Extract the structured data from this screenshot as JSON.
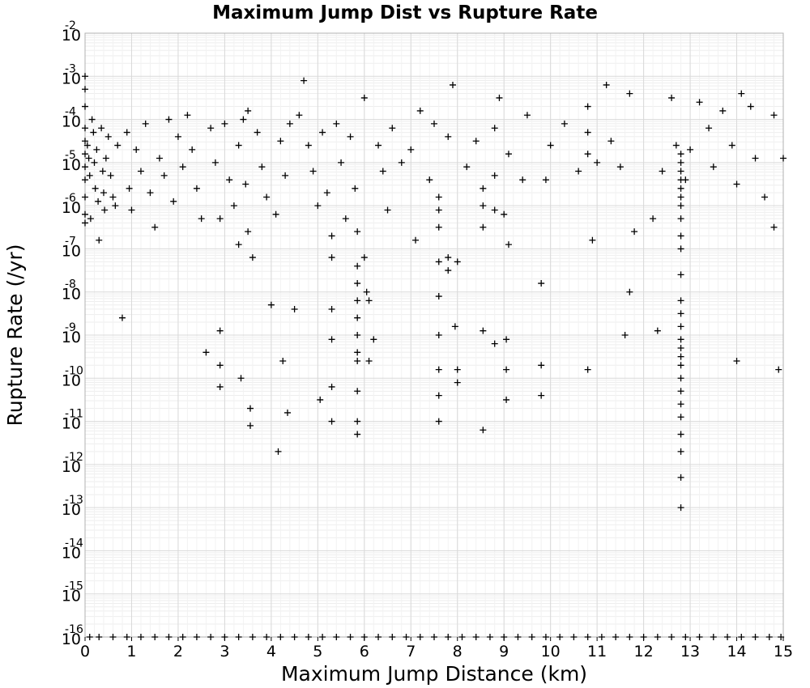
{
  "chart_data": {
    "type": "scatter",
    "title": "Maximum Jump Dist vs Rupture Rate",
    "xlabel": "Maximum Jump Distance (km)",
    "ylabel": "Rupture Rate (/yr)",
    "xlim": [
      0,
      15
    ],
    "ylim_exponent": [
      -16,
      -2
    ],
    "y_scale": "log",
    "x_ticks": [
      "0",
      "1",
      "2",
      "3",
      "4",
      "5",
      "6",
      "7",
      "8",
      "9",
      "10",
      "11",
      "12",
      "13",
      "14",
      "15"
    ],
    "y_ticks": [
      {
        "base": "10",
        "exp": "-2"
      },
      {
        "base": "10",
        "exp": "-3"
      },
      {
        "base": "10",
        "exp": "-4"
      },
      {
        "base": "10",
        "exp": "-5"
      },
      {
        "base": "10",
        "exp": "-6"
      },
      {
        "base": "10",
        "exp": "-7"
      },
      {
        "base": "10",
        "exp": "-8"
      },
      {
        "base": "10",
        "exp": "-9"
      },
      {
        "base": "10",
        "exp": "-10"
      },
      {
        "base": "10",
        "exp": "-11"
      },
      {
        "base": "10",
        "exp": "-12"
      },
      {
        "base": "10",
        "exp": "-13"
      },
      {
        "base": "10",
        "exp": "-14"
      },
      {
        "base": "10",
        "exp": "-15"
      },
      {
        "base": "10",
        "exp": "-16"
      }
    ],
    "grid": true,
    "marker": "+",
    "marker_color": "#000000",
    "points_log10": [
      [
        0.0,
        -3.0
      ],
      [
        0.0,
        -3.3
      ],
      [
        0.0,
        -3.7
      ],
      [
        0.0,
        -4.2
      ],
      [
        0.0,
        -4.5
      ],
      [
        0.0,
        -4.8
      ],
      [
        0.0,
        -5.1
      ],
      [
        0.0,
        -5.4
      ],
      [
        0.0,
        -5.8
      ],
      [
        0.0,
        -6.2
      ],
      [
        0.0,
        -6.4
      ],
      [
        0.05,
        -4.6
      ],
      [
        0.08,
        -4.9
      ],
      [
        0.1,
        -5.3
      ],
      [
        0.12,
        -6.3
      ],
      [
        0.15,
        -4.0
      ],
      [
        0.18,
        -4.3
      ],
      [
        0.2,
        -5.0
      ],
      [
        0.22,
        -5.6
      ],
      [
        0.25,
        -4.7
      ],
      [
        0.28,
        -5.9
      ],
      [
        0.3,
        -6.8
      ],
      [
        0.35,
        -4.2
      ],
      [
        0.38,
        -5.2
      ],
      [
        0.4,
        -5.7
      ],
      [
        0.42,
        -6.1
      ],
      [
        0.45,
        -4.9
      ],
      [
        0.5,
        -4.4
      ],
      [
        0.55,
        -5.3
      ],
      [
        0.6,
        -5.8
      ],
      [
        0.65,
        -6.0
      ],
      [
        0.7,
        -4.6
      ],
      [
        0.8,
        -8.6
      ],
      [
        0.9,
        -4.3
      ],
      [
        0.95,
        -5.6
      ],
      [
        1.0,
        -6.1
      ],
      [
        1.1,
        -4.7
      ],
      [
        1.2,
        -5.2
      ],
      [
        1.3,
        -4.1
      ],
      [
        1.4,
        -5.7
      ],
      [
        1.5,
        -6.5
      ],
      [
        1.6,
        -4.9
      ],
      [
        1.7,
        -5.3
      ],
      [
        1.8,
        -4.0
      ],
      [
        1.9,
        -5.9
      ],
      [
        2.0,
        -4.4
      ],
      [
        2.1,
        -5.1
      ],
      [
        2.2,
        -3.9
      ],
      [
        2.3,
        -4.7
      ],
      [
        2.4,
        -5.6
      ],
      [
        2.5,
        -6.3
      ],
      [
        2.6,
        -9.4
      ],
      [
        2.7,
        -4.2
      ],
      [
        2.8,
        -5.0
      ],
      [
        2.9,
        -6.3
      ],
      [
        2.9,
        -8.9
      ],
      [
        2.9,
        -9.7
      ],
      [
        2.9,
        -10.2
      ],
      [
        3.0,
        -4.1
      ],
      [
        3.1,
        -5.4
      ],
      [
        3.2,
        -6.0
      ],
      [
        3.3,
        -4.6
      ],
      [
        3.3,
        -6.9
      ],
      [
        3.35,
        -10.0
      ],
      [
        3.4,
        -4.0
      ],
      [
        3.45,
        -5.5
      ],
      [
        3.5,
        -3.8
      ],
      [
        3.5,
        -6.6
      ],
      [
        3.55,
        -10.7
      ],
      [
        3.55,
        -11.1
      ],
      [
        3.6,
        -7.2
      ],
      [
        3.7,
        -4.3
      ],
      [
        3.8,
        -5.1
      ],
      [
        3.9,
        -5.8
      ],
      [
        4.0,
        -8.3
      ],
      [
        4.1,
        -6.2
      ],
      [
        4.15,
        -11.7
      ],
      [
        4.2,
        -4.5
      ],
      [
        4.25,
        -9.6
      ],
      [
        4.3,
        -5.3
      ],
      [
        4.35,
        -10.8
      ],
      [
        4.4,
        -4.1
      ],
      [
        4.5,
        -8.4
      ],
      [
        4.6,
        -3.9
      ],
      [
        4.7,
        -3.1
      ],
      [
        4.8,
        -4.6
      ],
      [
        4.9,
        -5.2
      ],
      [
        5.0,
        -6.0
      ],
      [
        5.05,
        -10.5
      ],
      [
        5.1,
        -4.3
      ],
      [
        5.2,
        -5.7
      ],
      [
        5.3,
        -6.7
      ],
      [
        5.3,
        -7.2
      ],
      [
        5.3,
        -8.4
      ],
      [
        5.3,
        -9.1
      ],
      [
        5.3,
        -10.2
      ],
      [
        5.3,
        -11.0
      ],
      [
        5.4,
        -4.1
      ],
      [
        5.5,
        -5.0
      ],
      [
        5.6,
        -6.3
      ],
      [
        5.7,
        -4.4
      ],
      [
        5.8,
        -5.6
      ],
      [
        5.85,
        -6.6
      ],
      [
        5.85,
        -7.4
      ],
      [
        5.85,
        -7.8
      ],
      [
        5.85,
        -8.2
      ],
      [
        5.85,
        -8.6
      ],
      [
        5.85,
        -9.0
      ],
      [
        5.85,
        -9.4
      ],
      [
        5.85,
        -9.6
      ],
      [
        5.85,
        -10.3
      ],
      [
        5.85,
        -11.0
      ],
      [
        5.85,
        -11.3
      ],
      [
        6.0,
        -3.5
      ],
      [
        6.0,
        -7.2
      ],
      [
        6.05,
        -8.0
      ],
      [
        6.1,
        -8.2
      ],
      [
        6.1,
        -9.6
      ],
      [
        6.2,
        -9.1
      ],
      [
        6.3,
        -4.6
      ],
      [
        6.4,
        -5.2
      ],
      [
        6.5,
        -6.1
      ],
      [
        6.6,
        -4.2
      ],
      [
        6.8,
        -5.0
      ],
      [
        7.0,
        -4.7
      ],
      [
        7.1,
        -6.8
      ],
      [
        7.2,
        -3.8
      ],
      [
        7.4,
        -5.4
      ],
      [
        7.5,
        -4.1
      ],
      [
        7.6,
        -5.8
      ],
      [
        7.6,
        -6.1
      ],
      [
        7.6,
        -6.5
      ],
      [
        7.6,
        -7.3
      ],
      [
        7.6,
        -8.1
      ],
      [
        7.6,
        -9.0
      ],
      [
        7.6,
        -9.8
      ],
      [
        7.6,
        -10.4
      ],
      [
        7.6,
        -11.0
      ],
      [
        7.8,
        -4.4
      ],
      [
        7.8,
        -7.2
      ],
      [
        7.8,
        -7.5
      ],
      [
        7.9,
        -3.2
      ],
      [
        7.95,
        -8.8
      ],
      [
        8.0,
        -7.3
      ],
      [
        8.0,
        -9.8
      ],
      [
        8.0,
        -10.1
      ],
      [
        8.2,
        -5.1
      ],
      [
        8.4,
        -4.5
      ],
      [
        8.55,
        -5.6
      ],
      [
        8.55,
        -6.0
      ],
      [
        8.55,
        -6.5
      ],
      [
        8.55,
        -8.9
      ],
      [
        8.55,
        -11.2
      ],
      [
        8.8,
        -4.2
      ],
      [
        8.8,
        -5.3
      ],
      [
        8.8,
        -6.1
      ],
      [
        8.8,
        -9.2
      ],
      [
        8.9,
        -3.5
      ],
      [
        9.0,
        -6.2
      ],
      [
        9.05,
        -9.1
      ],
      [
        9.05,
        -9.8
      ],
      [
        9.05,
        -10.5
      ],
      [
        9.1,
        -4.8
      ],
      [
        9.1,
        -6.9
      ],
      [
        9.4,
        -5.4
      ],
      [
        9.5,
        -3.9
      ],
      [
        9.8,
        -7.8
      ],
      [
        9.8,
        -9.7
      ],
      [
        9.8,
        -10.4
      ],
      [
        9.9,
        -5.4
      ],
      [
        10.0,
        -4.6
      ],
      [
        10.3,
        -4.1
      ],
      [
        10.6,
        -5.2
      ],
      [
        10.8,
        -3.7
      ],
      [
        10.8,
        -4.3
      ],
      [
        10.8,
        -4.8
      ],
      [
        10.8,
        -9.8
      ],
      [
        10.9,
        -6.8
      ],
      [
        11.0,
        -5.0
      ],
      [
        11.2,
        -3.2
      ],
      [
        11.3,
        -4.5
      ],
      [
        11.5,
        -5.1
      ],
      [
        11.6,
        -9.0
      ],
      [
        11.7,
        -3.4
      ],
      [
        11.7,
        -8.0
      ],
      [
        11.8,
        -6.6
      ],
      [
        12.2,
        -6.3
      ],
      [
        12.3,
        -8.9
      ],
      [
        12.4,
        -5.2
      ],
      [
        12.6,
        -3.5
      ],
      [
        12.7,
        -4.6
      ],
      [
        12.8,
        -4.8
      ],
      [
        12.8,
        -5.0
      ],
      [
        12.8,
        -5.2
      ],
      [
        12.8,
        -5.4
      ],
      [
        12.8,
        -5.6
      ],
      [
        12.8,
        -5.8
      ],
      [
        12.8,
        -6.0
      ],
      [
        12.8,
        -6.3
      ],
      [
        12.8,
        -6.7
      ],
      [
        12.8,
        -7.0
      ],
      [
        12.8,
        -7.6
      ],
      [
        12.8,
        -8.2
      ],
      [
        12.8,
        -8.5
      ],
      [
        12.8,
        -8.8
      ],
      [
        12.8,
        -9.1
      ],
      [
        12.8,
        -9.3
      ],
      [
        12.8,
        -9.5
      ],
      [
        12.8,
        -9.7
      ],
      [
        12.8,
        -10.0
      ],
      [
        12.8,
        -10.3
      ],
      [
        12.8,
        -10.6
      ],
      [
        12.8,
        -10.9
      ],
      [
        12.8,
        -11.3
      ],
      [
        12.8,
        -11.7
      ],
      [
        12.8,
        -12.3
      ],
      [
        12.8,
        -13.0
      ],
      [
        12.9,
        -5.4
      ],
      [
        13.0,
        -4.7
      ],
      [
        13.2,
        -3.6
      ],
      [
        13.4,
        -4.2
      ],
      [
        13.5,
        -5.1
      ],
      [
        13.7,
        -3.8
      ],
      [
        13.9,
        -4.6
      ],
      [
        14.0,
        -5.5
      ],
      [
        14.0,
        -9.6
      ],
      [
        14.1,
        -3.4
      ],
      [
        14.3,
        -3.7
      ],
      [
        14.4,
        -4.9
      ],
      [
        14.6,
        -5.8
      ],
      [
        14.8,
        -3.9
      ],
      [
        14.8,
        -6.5
      ],
      [
        14.9,
        -9.8
      ],
      [
        15.0,
        -4.9
      ]
    ],
    "floor_points_x": [
      0.1,
      0.3,
      0.6,
      0.9,
      1.2,
      1.5,
      1.8,
      2.1,
      2.4,
      2.7,
      3.0,
      3.3,
      3.6,
      3.9,
      4.2,
      4.5,
      4.8,
      5.1,
      5.4,
      5.7,
      6.0,
      6.3,
      6.6,
      6.9,
      7.2,
      7.5,
      7.8,
      8.1,
      8.4,
      8.7,
      9.0,
      9.3,
      9.6,
      9.9,
      10.2,
      10.5,
      10.8,
      11.1,
      11.4,
      11.7,
      12.0,
      12.3,
      12.6,
      12.9,
      13.2,
      13.5,
      13.8,
      14.1,
      14.4,
      14.7,
      14.95
    ]
  }
}
